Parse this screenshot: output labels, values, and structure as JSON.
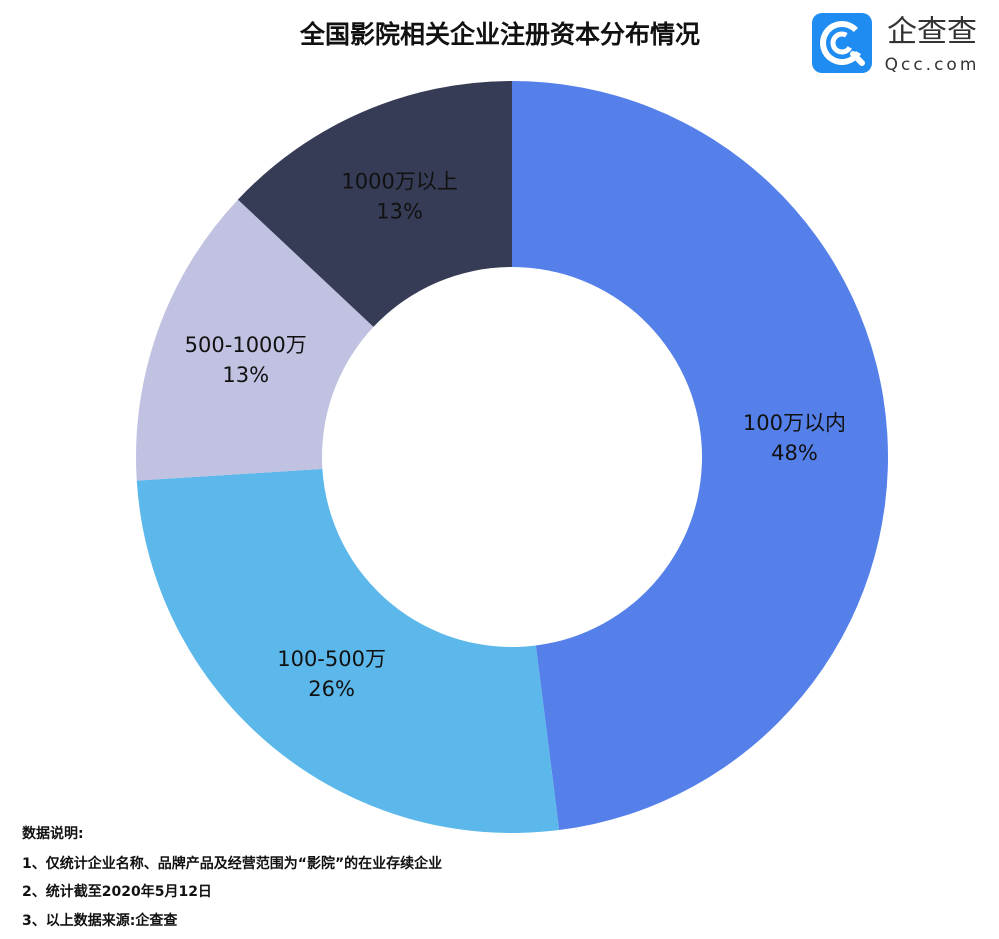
{
  "chart_data": {
    "type": "pie",
    "title": "全国影院相关企业注册资本分布情况",
    "categories": [
      "100万以内",
      "100-500万",
      "500-1000万",
      "1000万以上"
    ],
    "values": [
      48,
      26,
      13,
      13
    ],
    "value_labels": [
      "48%",
      "26%",
      "13%",
      "13%"
    ],
    "colors": [
      "#5580ea",
      "#5cb8ea",
      "#c1c2e2",
      "#373c56"
    ],
    "donut": true
  },
  "logo": {
    "name": "企查查",
    "site": "Qcc.com"
  },
  "notes": {
    "heading": "数据说明:",
    "lines": [
      "1、仅统计企业名称、品牌产品及经营范围为“影院”的在业存续企业",
      "2、统计截至2020年5月12日",
      "3、以上数据来源:企查查"
    ]
  }
}
